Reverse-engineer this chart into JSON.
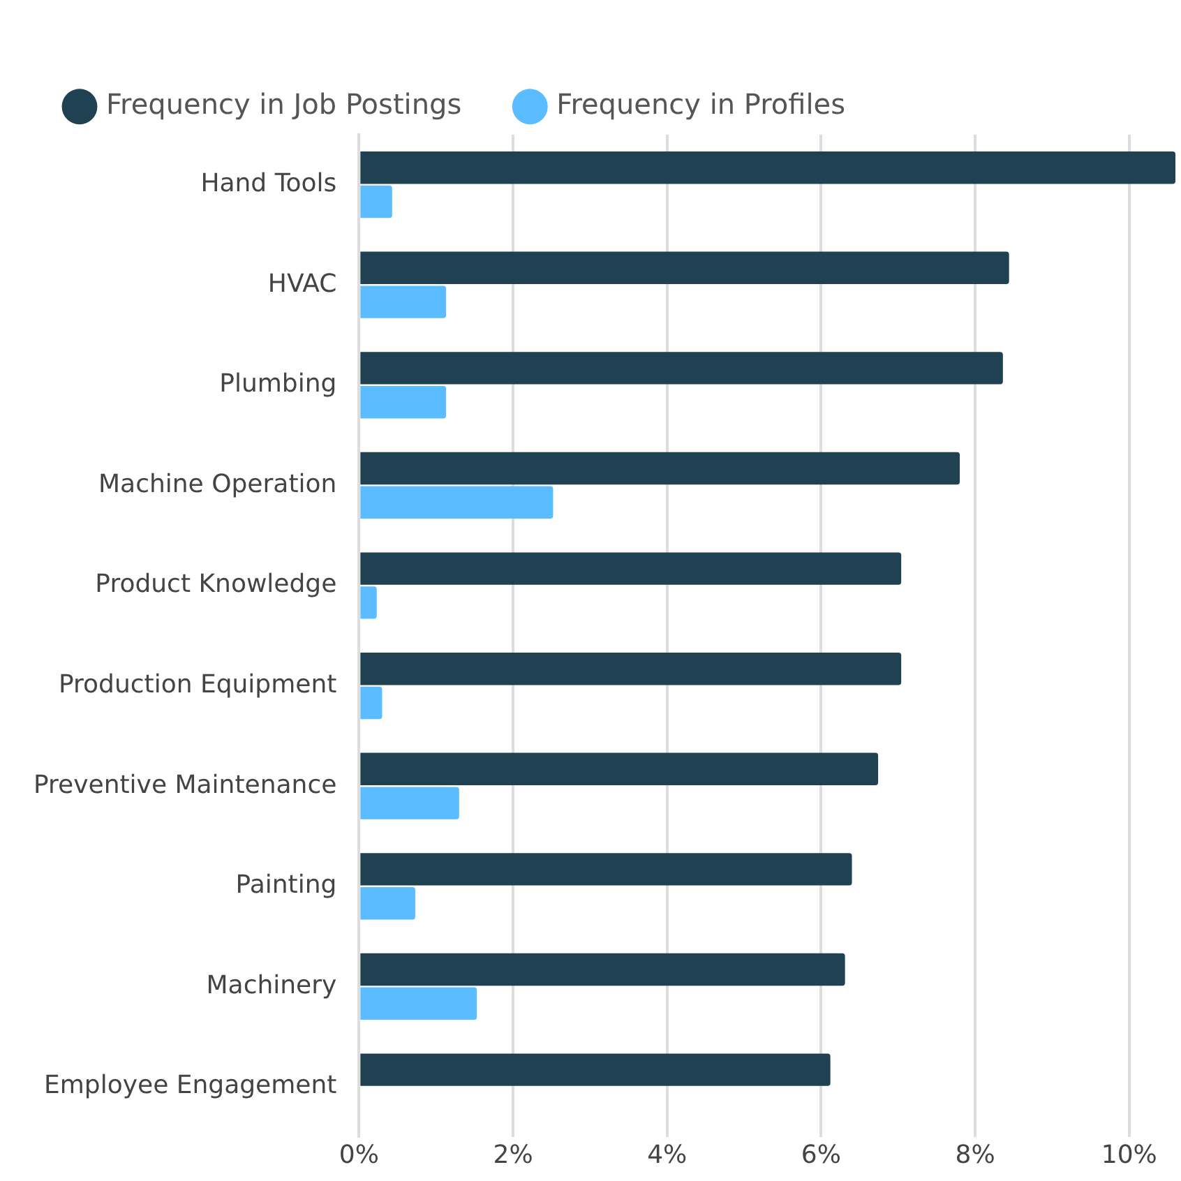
{
  "chart_data": {
    "type": "bar",
    "orientation": "horizontal",
    "categories": [
      "Hand Tools",
      "HVAC",
      "Plumbing",
      "Machine Operation",
      "Product Knowledge",
      "Production Equipment",
      "Preventive Maintenance",
      "Painting",
      "Machinery",
      "Employee Engagement"
    ],
    "series": [
      {
        "name": "Frequency in Job Postings",
        "color": "#1f4152",
        "values": [
          10.6,
          8.44,
          8.36,
          7.8,
          7.04,
          7.04,
          6.74,
          6.4,
          6.31,
          6.12
        ]
      },
      {
        "name": "Frequency in Profiles",
        "color": "#5bbcff",
        "values": [
          0.43,
          1.13,
          1.13,
          2.52,
          0.23,
          0.3,
          1.3,
          0.73,
          1.53,
          0
        ]
      }
    ],
    "xlim": [
      0,
      10.6
    ],
    "xticks": [
      {
        "value": 0,
        "label": "0%"
      },
      {
        "value": 2,
        "label": "2%"
      },
      {
        "value": 4,
        "label": "4%"
      },
      {
        "value": 6,
        "label": "6%"
      },
      {
        "value": 8,
        "label": "8%"
      },
      {
        "value": 10,
        "label": "10%"
      }
    ],
    "grid": "x",
    "legend": "top left",
    "marker": "circle"
  }
}
